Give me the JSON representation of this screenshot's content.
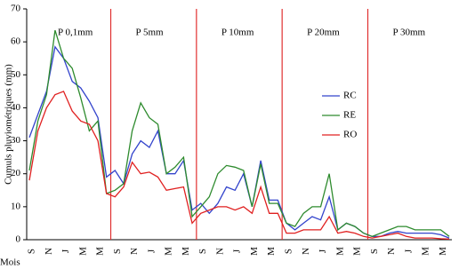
{
  "chart_data": {
    "type": "line",
    "y_label": "Cumuls pluviométriques (mm)",
    "x_label": "Mois",
    "categories": [
      "S",
      null,
      "N",
      null,
      "J",
      null,
      "M",
      null,
      "M",
      null,
      "S",
      null,
      "N",
      null,
      "J",
      null,
      "M",
      null,
      "M",
      null,
      "S",
      null,
      "N",
      null,
      "J",
      null,
      "M",
      null,
      "M",
      null,
      "S",
      null,
      "N",
      null,
      "J",
      null,
      "M",
      null,
      "M",
      null,
      "S",
      null,
      "N",
      null,
      "J",
      null,
      "M",
      null,
      "M",
      null
    ],
    "sections": [
      "P  0,1mm",
      "P  5mm",
      "P  10mm",
      "P  20mm",
      "P  30mm"
    ],
    "section_color": "#e03030",
    "series": [
      {
        "name": "RC",
        "color": "#3344cc",
        "values": [
          31,
          38,
          45,
          58.5,
          55,
          48,
          46,
          42,
          37,
          19,
          21,
          17,
          26,
          30,
          28,
          33,
          20,
          20,
          24,
          9,
          11,
          8,
          11,
          16,
          15,
          20,
          10,
          24,
          12,
          12,
          5,
          3,
          5,
          7,
          6,
          13,
          3,
          5,
          4,
          2,
          1,
          1,
          2,
          2.5,
          2,
          2,
          2,
          2,
          1.5,
          0.5
        ]
      },
      {
        "name": "RE",
        "color": "#2e8b2e",
        "values": [
          21,
          36,
          44,
          63.5,
          55,
          52,
          43,
          33,
          36,
          14,
          15,
          17,
          33,
          41.5,
          37,
          35,
          20,
          22,
          25,
          7,
          10,
          13,
          20,
          22.5,
          22,
          21,
          10,
          23,
          11,
          11,
          5,
          4,
          8,
          10,
          10,
          20,
          3,
          5,
          4,
          2,
          1,
          2,
          3,
          4,
          4,
          3,
          3,
          3,
          3,
          1
        ]
      },
      {
        "name": "RO",
        "color": "#e02020",
        "values": [
          18,
          33,
          40,
          44,
          45,
          39,
          36,
          35,
          30,
          14,
          13,
          16,
          23.5,
          20,
          20.5,
          19,
          15,
          15.5,
          16,
          5,
          8,
          9,
          10,
          10,
          9,
          10,
          8,
          16,
          8,
          8,
          2,
          2,
          3,
          3,
          3,
          7,
          2,
          2.5,
          2,
          1,
          0.5,
          1,
          1.5,
          2,
          1,
          0.5,
          0.5,
          0.5,
          0.3,
          0.2
        ]
      }
    ],
    "ylim": [
      0,
      70
    ],
    "yticks": [
      0,
      10,
      20,
      30,
      40,
      50,
      60,
      70
    ]
  }
}
